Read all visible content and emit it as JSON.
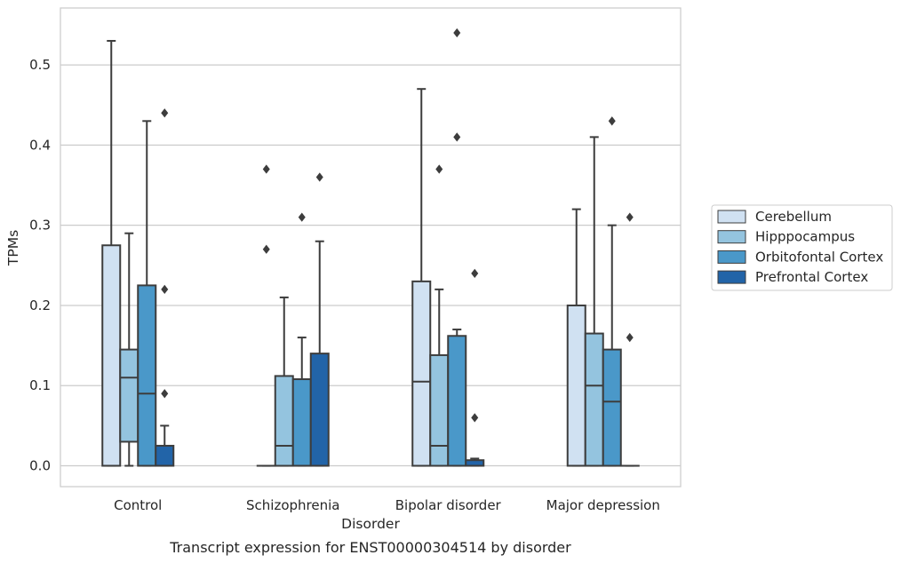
{
  "chart_data": {
    "type": "box",
    "xlabel": "Disorder",
    "ylabel": "TPMs",
    "caption": "Transcript expression for ENST00000304514 by disorder",
    "ylim": [
      -0.026,
      0.571
    ],
    "yticks": [
      "0.0",
      "0.1",
      "0.2",
      "0.3",
      "0.4",
      "0.5"
    ],
    "yticks_values": [
      0.0,
      0.1,
      0.2,
      0.3,
      0.4,
      0.5
    ],
    "grid": "horizontal",
    "legend_position": "right",
    "categories": [
      "Control",
      "Schizophrenia",
      "Bipolar disorder",
      "Major depression"
    ],
    "series": [
      {
        "name": "Cerebellum",
        "color": "#d0e1f2",
        "boxes": [
          {
            "q1": 0.0,
            "median": 0.0,
            "q3": 0.275,
            "whisker_low": 0.0,
            "whisker_high": 0.53,
            "fliers": []
          },
          {
            "q1": 0.0,
            "median": 0.0,
            "q3": 0.0,
            "whisker_low": 0.0,
            "whisker_high": 0.0,
            "fliers": [
              0.27,
              0.37
            ]
          },
          {
            "q1": 0.0,
            "median": 0.105,
            "q3": 0.23,
            "whisker_low": 0.0,
            "whisker_high": 0.47,
            "fliers": []
          },
          {
            "q1": 0.0,
            "median": 0.0,
            "q3": 0.2,
            "whisker_low": 0.0,
            "whisker_high": 0.32,
            "fliers": []
          }
        ]
      },
      {
        "name": "Hipppocampus",
        "color": "#94c4df",
        "boxes": [
          {
            "q1": 0.03,
            "median": 0.11,
            "q3": 0.145,
            "whisker_low": 0.0,
            "whisker_high": 0.29,
            "fliers": []
          },
          {
            "q1": 0.0,
            "median": 0.025,
            "q3": 0.112,
            "whisker_low": 0.0,
            "whisker_high": 0.21,
            "fliers": []
          },
          {
            "q1": 0.0,
            "median": 0.025,
            "q3": 0.138,
            "whisker_low": 0.0,
            "whisker_high": 0.22,
            "fliers": [
              0.37
            ]
          },
          {
            "q1": 0.0,
            "median": 0.1,
            "q3": 0.165,
            "whisker_low": 0.0,
            "whisker_high": 0.41,
            "fliers": []
          }
        ]
      },
      {
        "name": "Orbitofontal Cortex",
        "color": "#4a98c9",
        "boxes": [
          {
            "q1": 0.0,
            "median": 0.09,
            "q3": 0.225,
            "whisker_low": 0.0,
            "whisker_high": 0.43,
            "fliers": []
          },
          {
            "q1": 0.0,
            "median": 0.0,
            "q3": 0.108,
            "whisker_low": 0.0,
            "whisker_high": 0.16,
            "fliers": [
              0.31
            ]
          },
          {
            "q1": 0.0,
            "median": 0.0,
            "q3": 0.162,
            "whisker_low": 0.0,
            "whisker_high": 0.17,
            "fliers": [
              0.41,
              0.54
            ]
          },
          {
            "q1": 0.0,
            "median": 0.08,
            "q3": 0.145,
            "whisker_low": 0.0,
            "whisker_high": 0.3,
            "fliers": [
              0.43
            ]
          }
        ]
      },
      {
        "name": "Prefrontal Cortex",
        "color": "#2264a8",
        "boxes": [
          {
            "q1": 0.0,
            "median": 0.0,
            "q3": 0.025,
            "whisker_low": 0.0,
            "whisker_high": 0.05,
            "fliers": [
              0.09,
              0.22,
              0.44
            ]
          },
          {
            "q1": 0.0,
            "median": 0.0,
            "q3": 0.14,
            "whisker_low": 0.0,
            "whisker_high": 0.28,
            "fliers": [
              0.36
            ]
          },
          {
            "q1": 0.0,
            "median": 0.0,
            "q3": 0.007,
            "whisker_low": 0.0,
            "whisker_high": 0.009,
            "fliers": [
              0.06,
              0.24
            ]
          },
          {
            "q1": 0.0,
            "median": 0.0,
            "q3": 0.0,
            "whisker_low": 0.0,
            "whisker_high": 0.0,
            "fliers": [
              0.16,
              0.31
            ]
          }
        ]
      }
    ]
  }
}
